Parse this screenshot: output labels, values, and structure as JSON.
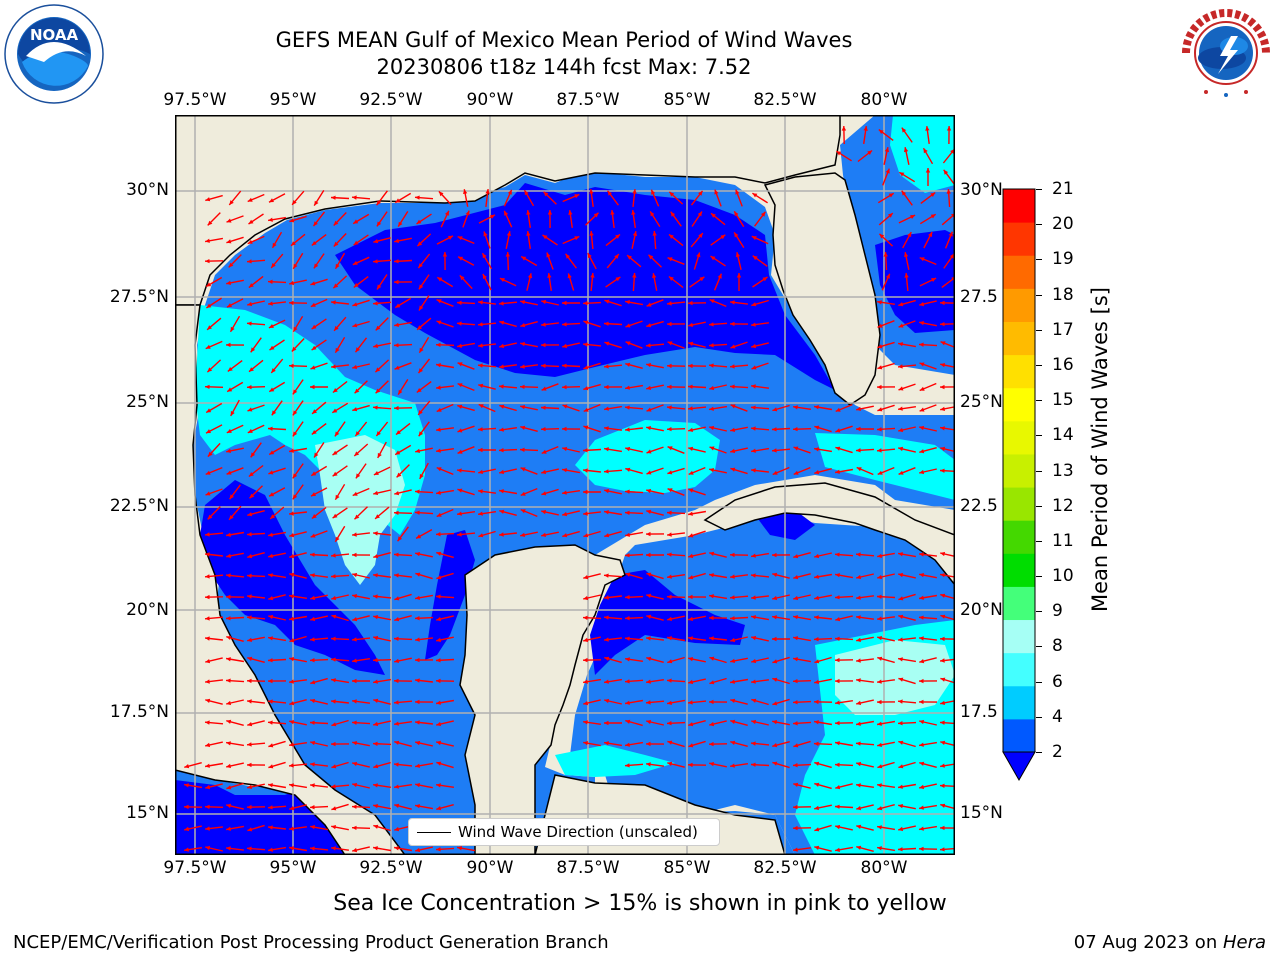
{
  "header": {
    "title_line1": "GEFS MEAN Gulf of Mexico Mean Period of Wind Waves",
    "title_line2": "20230806 t18z 144h fcst   Max: 7.52"
  },
  "logos": {
    "left": {
      "name": "noaa-logo",
      "text": "NOAA",
      "ring_text": "NATIONAL OCEANIC AND ATMOSPHERIC ADMINISTRATION · U.S. DEPARTMENT OF COMMERCE"
    },
    "right": {
      "name": "nws-logo",
      "ring_text": "NATIONAL WEATHER SERVICE"
    }
  },
  "map": {
    "lon_labels": [
      "97.5°W",
      "95°W",
      "92.5°W",
      "90°W",
      "87.5°W",
      "85°W",
      "82.5°W",
      "80°W"
    ],
    "lat_labels": [
      "30°N",
      "27.5°N",
      "25°N",
      "22.5°N",
      "20°N",
      "17.5°N",
      "15°N"
    ],
    "lat_labels_right": [
      "30°N",
      "27.5",
      "25°N",
      "22.5",
      "20°N",
      "17.5",
      "15°N"
    ],
    "legend_label": "Wind Wave Direction (unscaled)",
    "colors": {
      "land": "#efecdc",
      "level_2": "#0000ff",
      "level_2_4": "#1e7df5",
      "level_4_6": "#00ffff",
      "level_6_8": "#a8fff3",
      "arrow": "#ff0000",
      "grid": "#b0b0b0"
    }
  },
  "colorbar": {
    "label": "Mean Period of Wind Waves [s]",
    "ticks": [
      "2",
      "4",
      "6",
      "8",
      "9",
      "10",
      "11",
      "12",
      "13",
      "14",
      "15",
      "16",
      "17",
      "18",
      "19",
      "20",
      "21"
    ],
    "colors": [
      "#0059ff",
      "#00ccff",
      "#44ffff",
      "#a6fff5",
      "#44ff7a",
      "#00dd00",
      "#44d800",
      "#99e600",
      "#c8f000",
      "#e8f800",
      "#ffff00",
      "#ffe000",
      "#ffbb00",
      "#ff9a00",
      "#ff6a00",
      "#ff3600",
      "#ff0000"
    ],
    "under_color": "#0000ff"
  },
  "footer": {
    "note": "Sea Ice Concentration > 15% is shown in pink to yellow",
    "left": "NCEP/EMC/Verification Post Processing Product Generation Branch",
    "right_prefix": "07 Aug 2023 on ",
    "right_machine": "Hera"
  }
}
